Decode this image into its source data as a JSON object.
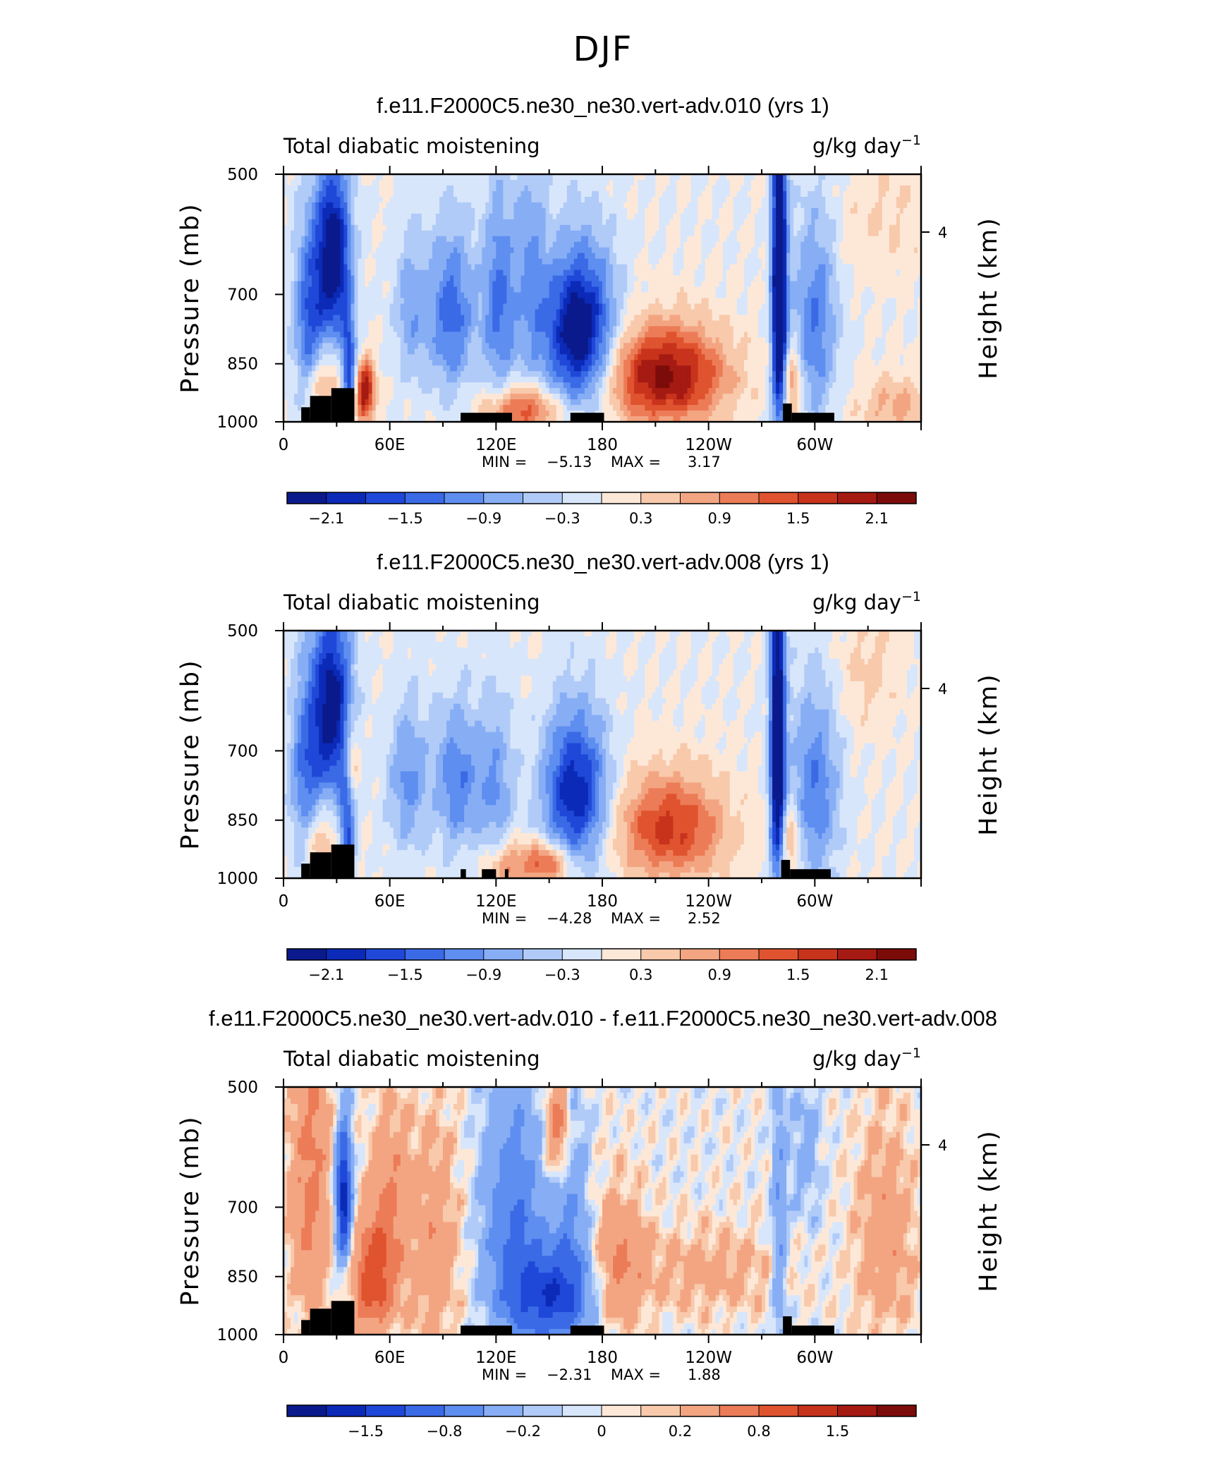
{
  "figure": {
    "title": "DJF"
  },
  "palette": {
    "diverging": [
      "#0a1a8c",
      "#0c2ab8",
      "#1f48d8",
      "#3b6ae6",
      "#5e8ef0",
      "#87aef5",
      "#b1cbf8",
      "#d8e6fb",
      "#fde8d8",
      "#f8c9ab",
      "#f3a582",
      "#ec7c57",
      "#e0532f",
      "#c8331c",
      "#a51a12",
      "#7c0c0a"
    ],
    "terrain": "#000000"
  },
  "chart_data": [
    {
      "type": "heatmap",
      "title": "f.e11.F2000C5.ne30_ne30.vert-adv.010 (yrs 1)",
      "left_label": "Total diabatic moistening",
      "right_label_base": "g/kg day",
      "right_label_exp": "−1",
      "ylabel": "Pressure (mb)",
      "ylabel_right": "Height (km)",
      "x_ticks": [
        "0",
        "60E",
        "120E",
        "180",
        "120W",
        "60W"
      ],
      "y_ticks": [
        "500",
        "700",
        "850",
        "1000"
      ],
      "y_right_ticks": [
        "4"
      ],
      "min_label": "MIN =",
      "min_value": "−5.13",
      "max_label": "MAX =",
      "max_value": "3.17",
      "stats": {
        "min": -5.13,
        "max": 3.17
      },
      "colorbar_ticks": [
        "−2.1",
        "−1.5",
        "−0.9",
        "−0.3",
        "0.3",
        "0.9",
        "1.5",
        "2.1"
      ],
      "levels": [
        -2.4,
        -2.1,
        -1.8,
        -1.5,
        -1.2,
        -0.9,
        -0.6,
        -0.3,
        0,
        0.3,
        0.6,
        0.9,
        1.2,
        1.5,
        1.8,
        2.1,
        2.4
      ],
      "features": [
        {
          "lon": 28,
          "p": 630,
          "wlon": 7,
          "wp": 110,
          "amp": -2.6
        },
        {
          "lon": 14,
          "p": 760,
          "wlon": 6,
          "wp": 140,
          "amp": -1.4
        },
        {
          "lon": 37,
          "p": 870,
          "wlon": 3,
          "wp": 90,
          "amp": -1.8
        },
        {
          "lon": 46,
          "p": 920,
          "wlon": 4,
          "wp": 55,
          "amp": 2.1
        },
        {
          "lon": 22,
          "p": 900,
          "wlon": 8,
          "wp": 60,
          "amp": 0.9
        },
        {
          "lon": 72,
          "p": 730,
          "wlon": 7,
          "wp": 110,
          "amp": -0.8
        },
        {
          "lon": 95,
          "p": 740,
          "wlon": 9,
          "wp": 120,
          "amp": -1.4
        },
        {
          "lon": 122,
          "p": 720,
          "wlon": 7,
          "wp": 150,
          "amp": -1.3
        },
        {
          "lon": 140,
          "p": 650,
          "wlon": 6,
          "wp": 160,
          "amp": -0.8
        },
        {
          "lon": 167,
          "p": 780,
          "wlon": 14,
          "wp": 120,
          "amp": -2.6
        },
        {
          "lon": 135,
          "p": 970,
          "wlon": 15,
          "wp": 45,
          "amp": 1.5
        },
        {
          "lon": 215,
          "p": 880,
          "wlon": 24,
          "wp": 85,
          "amp": 2.2
        },
        {
          "lon": 280,
          "p": 700,
          "wlon": 3,
          "wp": 230,
          "amp": -3.2
        },
        {
          "lon": 300,
          "p": 760,
          "wlon": 9,
          "wp": 160,
          "amp": -1.2
        },
        {
          "lon": 287,
          "p": 900,
          "wlon": 4,
          "wp": 70,
          "amp": 1.1
        },
        {
          "lon": 345,
          "p": 960,
          "wlon": 15,
          "wp": 60,
          "amp": 0.7
        },
        {
          "lon": 340,
          "p": 560,
          "wlon": 20,
          "wp": 80,
          "amp": 0.3
        }
      ],
      "terrain": [
        [
          10,
          15,
          960
        ],
        [
          15,
          27,
          930
        ],
        [
          27,
          40,
          910
        ],
        [
          100,
          129,
          975
        ],
        [
          162,
          181,
          975
        ],
        [
          282,
          287,
          950
        ],
        [
          287,
          311,
          975
        ]
      ]
    },
    {
      "type": "heatmap",
      "title": "f.e11.F2000C5.ne30_ne30.vert-adv.008 (yrs 1)",
      "left_label": "Total diabatic moistening",
      "right_label_base": "g/kg day",
      "right_label_exp": "−1",
      "ylabel": "Pressure (mb)",
      "ylabel_right": "Height (km)",
      "x_ticks": [
        "0",
        "60E",
        "120E",
        "180",
        "120W",
        "60W"
      ],
      "y_ticks": [
        "500",
        "700",
        "850",
        "1000"
      ],
      "y_right_ticks": [
        "4"
      ],
      "min_label": "MIN =",
      "min_value": "−4.28",
      "max_label": "MAX =",
      "max_value": "2.52",
      "stats": {
        "min": -4.28,
        "max": 2.52
      },
      "colorbar_ticks": [
        "−2.1",
        "−1.5",
        "−0.9",
        "−0.3",
        "0.3",
        "0.9",
        "1.5",
        "2.1"
      ],
      "levels": [
        -2.4,
        -2.1,
        -1.8,
        -1.5,
        -1.2,
        -0.9,
        -0.6,
        -0.3,
        0,
        0.3,
        0.6,
        0.9,
        1.2,
        1.5,
        1.8,
        2.1,
        2.4
      ],
      "features": [
        {
          "lon": 27,
          "p": 620,
          "wlon": 8,
          "wp": 120,
          "amp": -2.4
        },
        {
          "lon": 12,
          "p": 760,
          "wlon": 6,
          "wp": 150,
          "amp": -1.2
        },
        {
          "lon": 36,
          "p": 860,
          "wlon": 3,
          "wp": 110,
          "amp": -1.6
        },
        {
          "lon": 38,
          "p": 720,
          "wlon": 3,
          "wp": 60,
          "amp": 1.2
        },
        {
          "lon": 20,
          "p": 900,
          "wlon": 8,
          "wp": 60,
          "amp": 0.8
        },
        {
          "lon": 70,
          "p": 760,
          "wlon": 8,
          "wp": 110,
          "amp": -1.0
        },
        {
          "lon": 98,
          "p": 760,
          "wlon": 9,
          "wp": 110,
          "amp": -1.2
        },
        {
          "lon": 120,
          "p": 780,
          "wlon": 7,
          "wp": 130,
          "amp": -0.9
        },
        {
          "lon": 165,
          "p": 790,
          "wlon": 13,
          "wp": 120,
          "amp": -2.1
        },
        {
          "lon": 148,
          "p": 960,
          "wlon": 10,
          "wp": 40,
          "amp": 1.5
        },
        {
          "lon": 125,
          "p": 965,
          "wlon": 8,
          "wp": 50,
          "amp": 0.9
        },
        {
          "lon": 218,
          "p": 870,
          "wlon": 22,
          "wp": 90,
          "amp": 1.6
        },
        {
          "lon": 279,
          "p": 680,
          "wlon": 3,
          "wp": 230,
          "amp": -3.0
        },
        {
          "lon": 300,
          "p": 780,
          "wlon": 10,
          "wp": 150,
          "amp": -1.2
        },
        {
          "lon": 286,
          "p": 900,
          "wlon": 4,
          "wp": 70,
          "amp": 0.9
        },
        {
          "lon": 330,
          "p": 560,
          "wlon": 12,
          "wp": 70,
          "amp": 0.4
        }
      ],
      "terrain": [
        [
          10,
          15,
          960
        ],
        [
          15,
          27,
          930
        ],
        [
          27,
          40,
          910
        ],
        [
          100,
          103,
          975
        ],
        [
          112,
          120,
          975
        ],
        [
          125,
          127,
          975
        ],
        [
          281,
          286,
          950
        ],
        [
          286,
          309,
          975
        ]
      ]
    },
    {
      "type": "heatmap",
      "title": "f.e11.F2000C5.ne30_ne30.vert-adv.010 - f.e11.F2000C5.ne30_ne30.vert-adv.008",
      "left_label": "Total diabatic moistening",
      "right_label_base": "g/kg day",
      "right_label_exp": "−1",
      "ylabel": "Pressure (mb)",
      "ylabel_right": "Height (km)",
      "x_ticks": [
        "0",
        "60E",
        "120E",
        "180",
        "120W",
        "60W"
      ],
      "y_ticks": [
        "500",
        "700",
        "850",
        "1000"
      ],
      "y_right_ticks": [
        "4"
      ],
      "min_label": "MIN =",
      "min_value": "−2.31",
      "max_label": "MAX =",
      "max_value": "1.88",
      "stats": {
        "min": -2.31,
        "max": 1.88
      },
      "colorbar_ticks": [
        "−1.5",
        "−0.8",
        "−0.2",
        "0",
        "0.2",
        "0.8",
        "1.5"
      ],
      "levels": [
        -2.0,
        -1.8,
        -1.5,
        -1.2,
        -0.8,
        -0.5,
        -0.2,
        -0.1,
        0,
        0.1,
        0.2,
        0.5,
        0.8,
        1.2,
        1.5,
        1.8,
        2.0
      ],
      "features": [
        {
          "lon": 34,
          "p": 680,
          "wlon": 3,
          "wp": 90,
          "amp": -1.8
        },
        {
          "lon": 15,
          "p": 650,
          "wlon": 8,
          "wp": 200,
          "amp": 0.6
        },
        {
          "lon": 50,
          "p": 860,
          "wlon": 8,
          "wp": 90,
          "amp": 1.0
        },
        {
          "lon": 60,
          "p": 700,
          "wlon": 8,
          "wp": 130,
          "amp": 0.5
        },
        {
          "lon": 85,
          "p": 780,
          "wlon": 10,
          "wp": 180,
          "amp": 0.4
        },
        {
          "lon": 130,
          "p": 730,
          "wlon": 12,
          "wp": 180,
          "amp": -0.8
        },
        {
          "lon": 150,
          "p": 900,
          "wlon": 15,
          "wp": 80,
          "amp": -1.3
        },
        {
          "lon": 162,
          "p": 740,
          "wlon": 7,
          "wp": 180,
          "amp": -0.5
        },
        {
          "lon": 155,
          "p": 560,
          "wlon": 5,
          "wp": 60,
          "amp": 0.8
        },
        {
          "lon": 190,
          "p": 820,
          "wlon": 10,
          "wp": 110,
          "amp": 0.5
        },
        {
          "lon": 240,
          "p": 840,
          "wlon": 28,
          "wp": 70,
          "amp": 0.3
        },
        {
          "lon": 280,
          "p": 760,
          "wlon": 3,
          "wp": 230,
          "amp": -0.5
        },
        {
          "lon": 295,
          "p": 600,
          "wlon": 6,
          "wp": 90,
          "amp": -0.3
        },
        {
          "lon": 340,
          "p": 760,
          "wlon": 12,
          "wp": 160,
          "amp": 0.4
        }
      ],
      "terrain": [
        [
          10,
          15,
          960
        ],
        [
          15,
          27,
          930
        ],
        [
          27,
          40,
          910
        ],
        [
          100,
          129,
          975
        ],
        [
          162,
          181,
          975
        ],
        [
          282,
          287,
          950
        ],
        [
          287,
          311,
          975
        ]
      ]
    }
  ]
}
